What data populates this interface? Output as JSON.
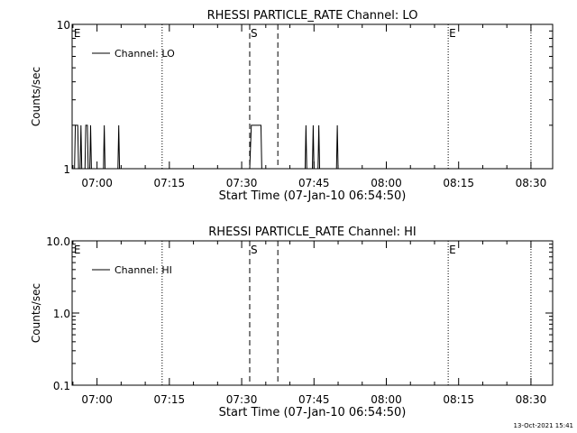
{
  "footer_timestamp": "13-Oct-2021 15:41",
  "chart_data": [
    {
      "type": "line",
      "title": "RHESSI PARTICLE_RATE Channel: LO",
      "xlabel": "Start Time (07-Jan-10 06:54:50)",
      "ylabel": "Counts/sec",
      "y_scale": "log",
      "ylim": [
        1,
        10
      ],
      "y_tick_labels": [
        "1",
        "10"
      ],
      "xlim": [
        "06:54:50",
        "08:34:30"
      ],
      "x_ticks": [
        "07:00",
        "07:15",
        "07:30",
        "07:45",
        "08:00",
        "08:15",
        "08:30"
      ],
      "legend": {
        "position": "top-left",
        "entries": [
          "Channel: LO"
        ]
      },
      "grid": false,
      "annotations": [
        {
          "label": "E",
          "time": "06:55:00",
          "line": "none"
        },
        {
          "label": "",
          "time": "07:13:30",
          "line": "dotted"
        },
        {
          "label": "S",
          "time": "07:31:40",
          "line": "dashed"
        },
        {
          "label": "",
          "time": "07:37:30",
          "line": "dashed"
        },
        {
          "label": "E",
          "time": "08:12:50",
          "line": "dotted"
        },
        {
          "label": "",
          "time": "08:30:00",
          "line": "dotted"
        }
      ],
      "series": [
        {
          "name": "Channel: LO",
          "points": [
            [
              "06:55:00",
              1
            ],
            [
              "06:55:20",
              1
            ],
            [
              "06:55:30",
              2
            ],
            [
              "06:56:00",
              2
            ],
            [
              "06:56:10",
              1
            ],
            [
              "06:56:30",
              1
            ],
            [
              "06:56:40",
              2
            ],
            [
              "06:56:50",
              1
            ],
            [
              "06:57:30",
              1
            ],
            [
              "06:57:40",
              2
            ],
            [
              "06:58:00",
              2
            ],
            [
              "06:58:10",
              1
            ],
            [
              "06:58:30",
              1
            ],
            [
              "06:58:40",
              2
            ],
            [
              "06:58:50",
              1
            ],
            [
              "07:01:20",
              1
            ],
            [
              "07:01:30",
              2
            ],
            [
              "07:01:40",
              1
            ],
            [
              "07:04:20",
              1
            ],
            [
              "07:04:30",
              2
            ],
            [
              "07:04:40",
              1
            ],
            [
              "07:31:40",
              1
            ],
            [
              "07:32:00",
              2
            ],
            [
              "07:34:00",
              2
            ],
            [
              "07:34:10",
              1
            ],
            [
              "07:43:10",
              1
            ],
            [
              "07:43:20",
              2
            ],
            [
              "07:43:30",
              1
            ],
            [
              "07:44:40",
              1
            ],
            [
              "07:44:50",
              2
            ],
            [
              "07:45:00",
              1
            ],
            [
              "07:45:50",
              1
            ],
            [
              "07:46:00",
              2
            ],
            [
              "07:46:10",
              1
            ],
            [
              "07:49:40",
              1
            ],
            [
              "07:49:50",
              2
            ],
            [
              "07:50:00",
              1
            ]
          ]
        }
      ]
    },
    {
      "type": "line",
      "title": "RHESSI PARTICLE_RATE Channel: HI",
      "xlabel": "Start Time (07-Jan-10 06:54:50)",
      "ylabel": "Counts/sec",
      "y_scale": "log",
      "ylim": [
        0.1,
        10
      ],
      "y_tick_labels": [
        "0.1",
        "1.0",
        "10.0"
      ],
      "xlim": [
        "06:54:50",
        "08:34:30"
      ],
      "x_ticks": [
        "07:00",
        "07:15",
        "07:30",
        "07:45",
        "08:00",
        "08:15",
        "08:30"
      ],
      "legend": {
        "position": "top-left",
        "entries": [
          "Channel: HI"
        ]
      },
      "grid": false,
      "annotations": [
        {
          "label": "E",
          "time": "06:55:00",
          "line": "none"
        },
        {
          "label": "",
          "time": "07:13:30",
          "line": "dotted"
        },
        {
          "label": "S",
          "time": "07:31:40",
          "line": "dashed"
        },
        {
          "label": "",
          "time": "07:37:30",
          "line": "dashed"
        },
        {
          "label": "E",
          "time": "08:12:50",
          "line": "dotted"
        },
        {
          "label": "",
          "time": "08:30:00",
          "line": "dotted"
        }
      ],
      "series": [
        {
          "name": "Channel: HI",
          "points": []
        }
      ]
    }
  ]
}
